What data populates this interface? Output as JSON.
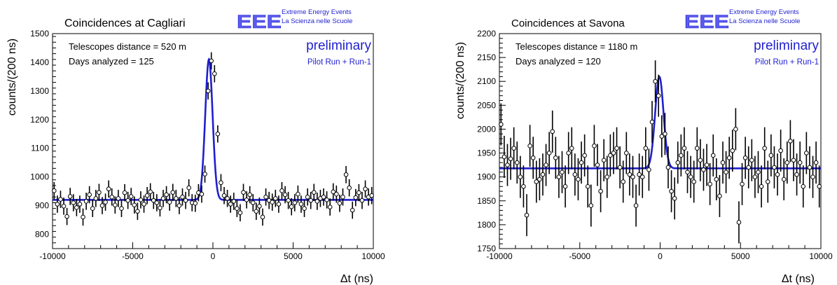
{
  "chart_data": [
    {
      "type": "scatter",
      "title": "Coincidences at Cagliari",
      "logo": {
        "mark": "EEE",
        "line1": "Extreme Energy Events",
        "line2": "La Scienza nelle Scuole"
      },
      "annotations": [
        "Telescopes distance = 520 m",
        "Days analyzed = 125"
      ],
      "status": "preliminary",
      "run": "Pilot Run + Run-1",
      "xlabel": "Δt (ns)",
      "ylabel": "counts/(200 ns)",
      "xlim": [
        -10000,
        10000
      ],
      "ylim": [
        750,
        1500
      ],
      "xticks": [
        -10000,
        -5000,
        0,
        5000,
        10000
      ],
      "yticks": [
        800,
        900,
        1000,
        1100,
        1200,
        1300,
        1400,
        1500
      ],
      "grid": false,
      "fit": {
        "type": "gaussian+constant",
        "baseline": 920,
        "amplitude": 490,
        "mean": -250,
        "sigma": 230,
        "color": "#1f1fd0"
      },
      "series": [
        {
          "error": 30,
          "x": [
            -9900,
            -9700,
            -9500,
            -9300,
            -9100,
            -8900,
            -8700,
            -8500,
            -8300,
            -8100,
            -7900,
            -7700,
            -7500,
            -7300,
            -7100,
            -6900,
            -6700,
            -6500,
            -6300,
            -6100,
            -5900,
            -5700,
            -5500,
            -5300,
            -5100,
            -4900,
            -4700,
            -4500,
            -4300,
            -4100,
            -3900,
            -3700,
            -3500,
            -3300,
            -3100,
            -2900,
            -2700,
            -2500,
            -2300,
            -2100,
            -1900,
            -1700,
            -1500,
            -1300,
            -1100,
            -900,
            -700,
            -500,
            -300,
            -100,
            100,
            300,
            500,
            700,
            900,
            1100,
            1300,
            1500,
            1700,
            1900,
            2100,
            2300,
            2500,
            2700,
            2900,
            3100,
            3300,
            3500,
            3700,
            3900,
            4100,
            4300,
            4500,
            4700,
            4900,
            5100,
            5300,
            5500,
            5700,
            5900,
            6100,
            6300,
            6500,
            6700,
            6900,
            7100,
            7300,
            7500,
            7700,
            7900,
            8100,
            8300,
            8500,
            8700,
            8900,
            9100,
            9300,
            9500,
            9700,
            9900
          ],
          "y": [
            952,
            905,
            922,
            898,
            862,
            932,
            910,
            893,
            905,
            860,
            915,
            938,
            890,
            925,
            946,
            900,
            912,
            958,
            930,
            902,
            925,
            890,
            945,
            918,
            932,
            902,
            880,
            920,
            905,
            935,
            948,
            918,
            910,
            892,
            925,
            938,
            912,
            946,
            925,
            900,
            930,
            918,
            962,
            910,
            908,
            945,
            940,
            1010,
            1300,
            1405,
            1360,
            1150,
            980,
            935,
            925,
            905,
            915,
            890,
            875,
            946,
            920,
            938,
            910,
            880,
            898,
            860,
            930,
            918,
            912,
            925,
            905,
            952,
            938,
            918,
            896,
            910,
            940,
            905,
            890,
            930,
            918,
            946,
            915,
            925,
            930,
            920,
            895,
            948,
            940,
            908,
            930,
            1008,
            962,
            884,
            928,
            945,
            918,
            958,
            930,
            935
          ]
        }
      ]
    },
    {
      "type": "scatter",
      "title": "Coincidences at Savona",
      "logo": {
        "mark": "EEE",
        "line1": "Extreme Energy Events",
        "line2": "La Scienza nelle Scuole"
      },
      "annotations": [
        "Telescopes distance = 1180 m",
        "Days analyzed = 120"
      ],
      "status": "preliminary",
      "run": "Pilot Run + Run-1",
      "xlabel": "Δt (ns)",
      "ylabel": "counts/(200 ns)",
      "xlim": [
        -10000,
        10000
      ],
      "ylim": [
        1750,
        2200
      ],
      "xticks": [
        -10000,
        -5000,
        0,
        5000,
        10000
      ],
      "yticks": [
        1750,
        1800,
        1850,
        1900,
        1950,
        2000,
        2050,
        2100,
        2150,
        2200
      ],
      "grid": false,
      "fit": {
        "type": "gaussian+constant",
        "baseline": 1918,
        "amplitude": 192,
        "mean": -50,
        "sigma": 260,
        "color": "#1f1fd0"
      },
      "series": [
        {
          "error": 44,
          "x": [
            -9900,
            -9700,
            -9500,
            -9300,
            -9100,
            -8900,
            -8700,
            -8500,
            -8300,
            -8100,
            -7900,
            -7700,
            -7500,
            -7300,
            -7100,
            -6900,
            -6700,
            -6500,
            -6300,
            -6100,
            -5900,
            -5700,
            -5500,
            -5300,
            -5100,
            -4900,
            -4700,
            -4500,
            -4300,
            -4100,
            -3900,
            -3700,
            -3500,
            -3300,
            -3100,
            -2900,
            -2700,
            -2500,
            -2300,
            -2100,
            -1900,
            -1700,
            -1500,
            -1300,
            -1100,
            -900,
            -700,
            -500,
            -300,
            -100,
            100,
            300,
            500,
            700,
            900,
            1100,
            1300,
            1500,
            1700,
            1900,
            2100,
            2300,
            2500,
            2700,
            2900,
            3100,
            3300,
            3500,
            3700,
            3900,
            4100,
            4300,
            4500,
            4700,
            4900,
            5100,
            5300,
            5500,
            5700,
            5900,
            6100,
            6300,
            6500,
            6700,
            6900,
            7100,
            7300,
            7500,
            7700,
            7900,
            8100,
            8300,
            8500,
            8700,
            8900,
            9100,
            9300,
            9500,
            9700,
            9900
          ],
          "y": [
            2010,
            1942,
            1925,
            1938,
            1960,
            1930,
            1900,
            1880,
            1820,
            1965,
            1940,
            1890,
            1895,
            1905,
            1925,
            1950,
            1995,
            1940,
            1900,
            1910,
            1880,
            1950,
            1960,
            1905,
            1895,
            1930,
            1945,
            1880,
            1840,
            1965,
            1925,
            1870,
            1935,
            1900,
            1945,
            1950,
            1960,
            1920,
            1890,
            1950,
            1905,
            1900,
            1840,
            1905,
            1900,
            1960,
            1915,
            2015,
            2100,
            2070,
            1985,
            1990,
            1920,
            1870,
            1855,
            1930,
            1945,
            1960,
            1910,
            1900,
            1890,
            1960,
            1935,
            1915,
            1925,
            1885,
            1945,
            1895,
            1860,
            1930,
            1910,
            1940,
            1955,
            2000,
            1805,
            1885,
            1940,
            1920,
            1935,
            1900,
            1910,
            1880,
            1960,
            1890,
            1945,
            1920,
            1905,
            1955,
            1895,
            1930,
            1975,
            1935,
            1905,
            1930,
            1880,
            1950,
            1920,
            1900,
            1930,
            1880
          ]
        }
      ]
    }
  ]
}
